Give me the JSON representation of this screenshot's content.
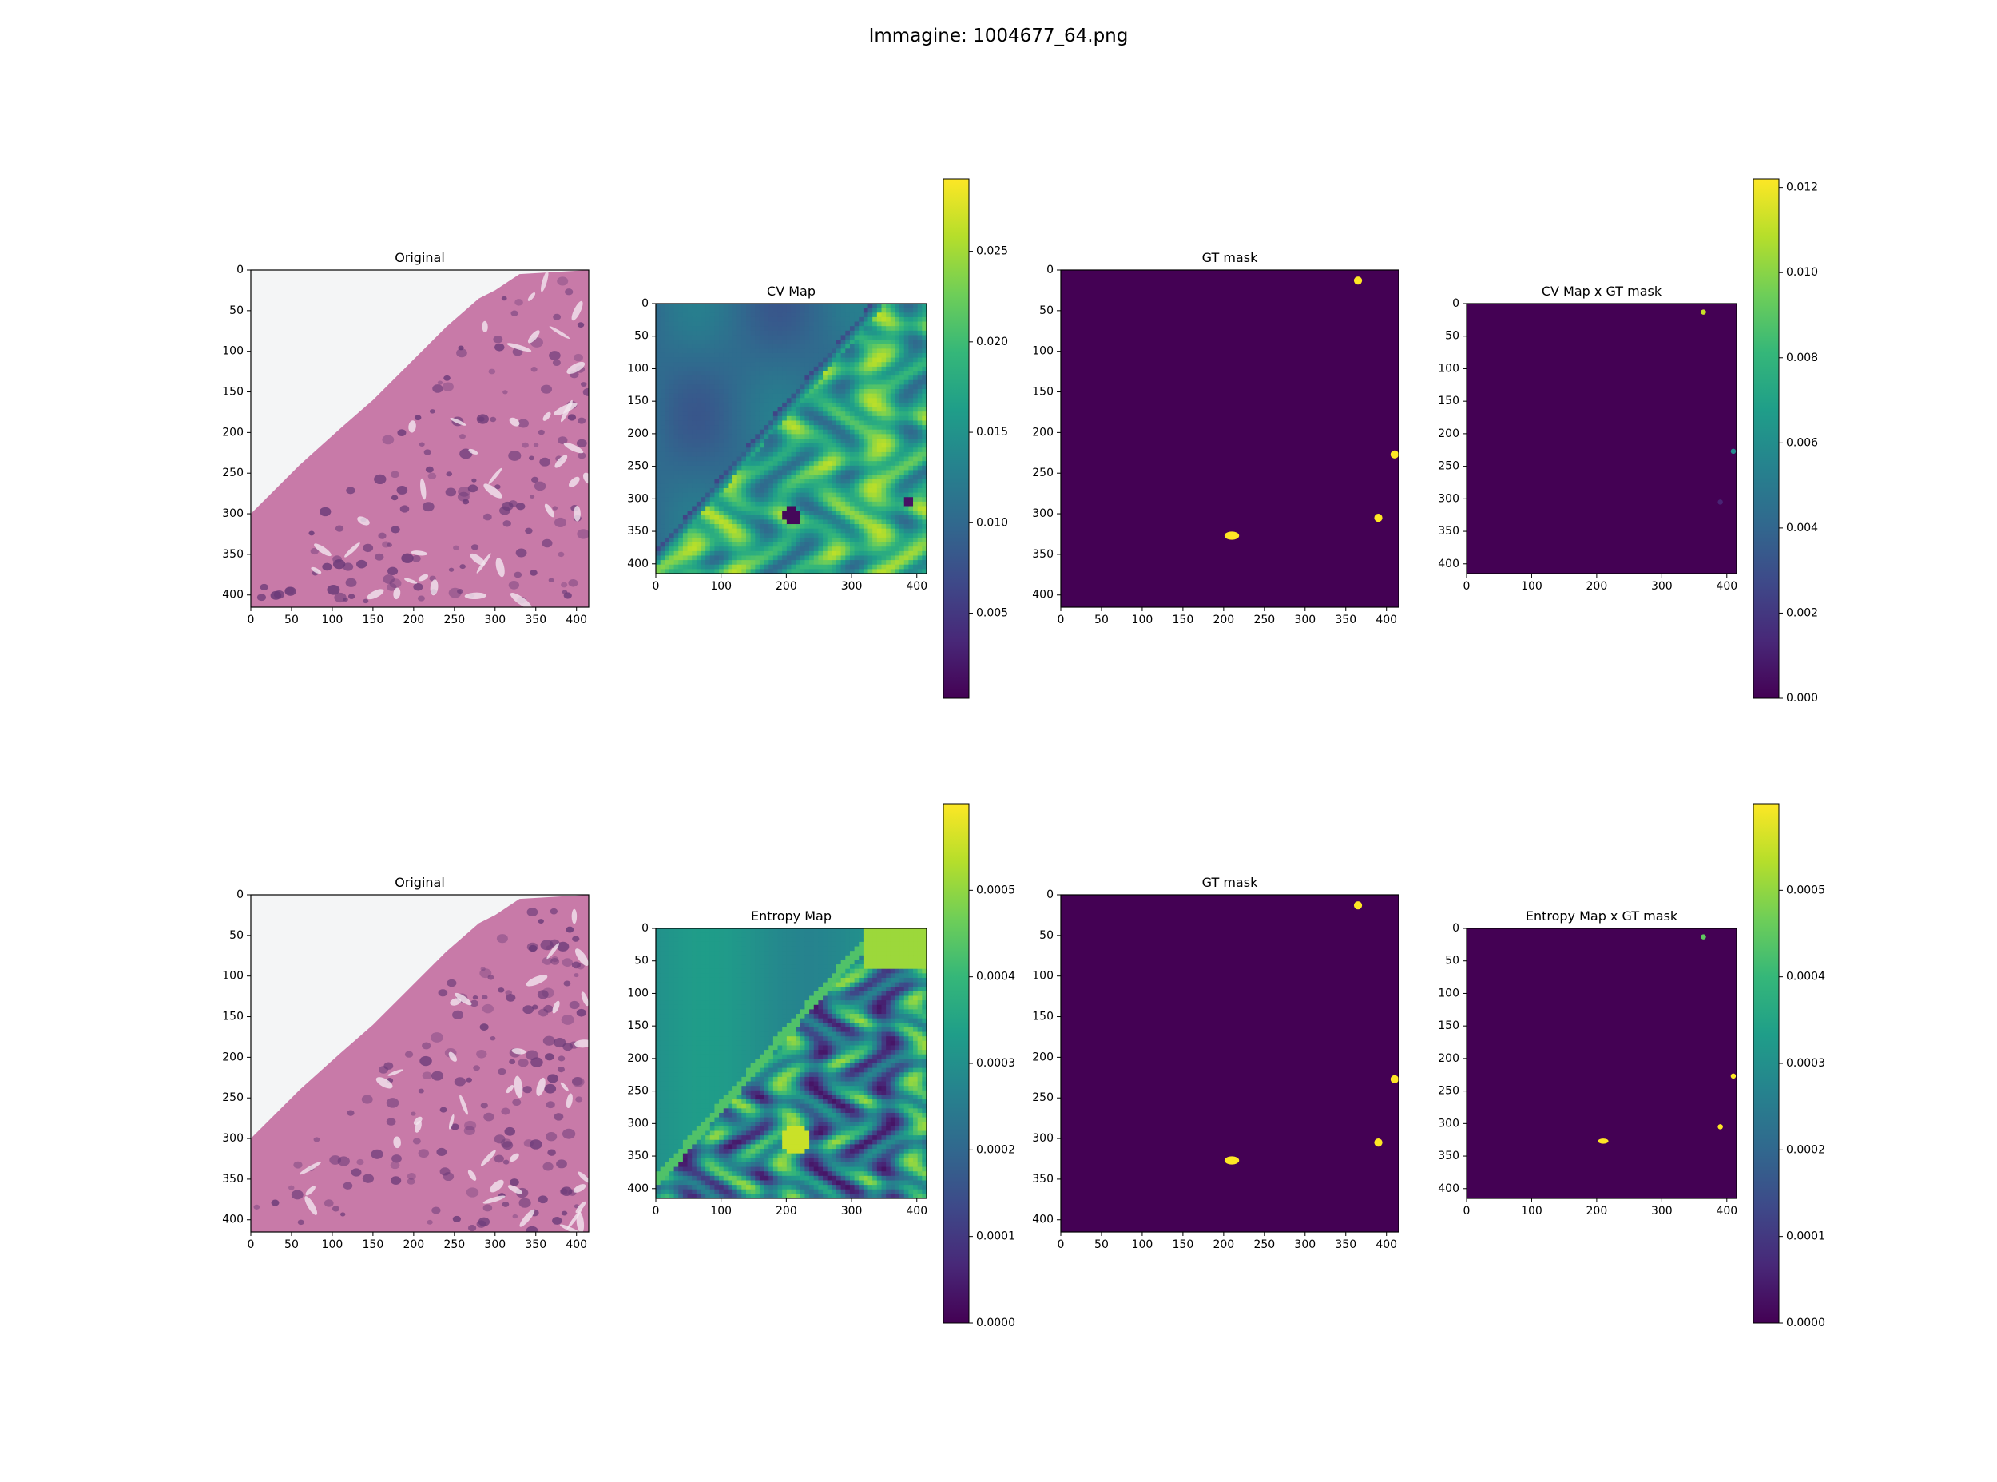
{
  "figure": {
    "title": "Immagine: 1004677_64.png"
  },
  "colors": {
    "viridis": [
      "#440154",
      "#482878",
      "#3e4989",
      "#31688e",
      "#26828e",
      "#1f9e89",
      "#35b779",
      "#6ece58",
      "#b5de2b",
      "#fde725"
    ],
    "tissue_pink": "#c87aa8",
    "nucleus": "#6a3a78",
    "background_white": "#f4f5f6"
  },
  "chart_data": [
    {
      "type": "heatmap",
      "title": "Original",
      "content": "H&E histology image",
      "xlim": [
        0,
        415
      ],
      "ylim": [
        415,
        0
      ],
      "xticks": [
        0,
        50,
        100,
        150,
        200,
        250,
        300,
        350,
        400
      ],
      "yticks": [
        0,
        50,
        100,
        150,
        200,
        250,
        300,
        350,
        400
      ]
    },
    {
      "type": "heatmap",
      "title": "CV Map",
      "xlim": [
        0,
        415
      ],
      "ylim": [
        415,
        0
      ],
      "xticks": [
        0,
        100,
        200,
        300,
        400
      ],
      "yticks": [
        0,
        50,
        100,
        150,
        200,
        250,
        300,
        350,
        400
      ],
      "colorbar": {
        "range": [
          0.0003,
          0.029
        ],
        "ticks": [
          "0.005",
          "0.010",
          "0.015",
          "0.020",
          "0.025"
        ]
      }
    },
    {
      "type": "heatmap",
      "title": "GT mask",
      "xlim": [
        0,
        415
      ],
      "ylim": [
        415,
        0
      ],
      "xticks": [
        0,
        50,
        100,
        150,
        200,
        250,
        300,
        350,
        400
      ],
      "yticks": [
        0,
        50,
        100,
        150,
        200,
        250,
        300,
        350,
        400
      ],
      "blobs": [
        {
          "x": 365,
          "y": 13
        },
        {
          "x": 410,
          "y": 227
        },
        {
          "x": 210,
          "y": 327
        },
        {
          "x": 390,
          "y": 305
        }
      ]
    },
    {
      "type": "heatmap",
      "title": "CV Map x GT mask",
      "xlim": [
        0,
        415
      ],
      "ylim": [
        415,
        0
      ],
      "xticks": [
        0,
        100,
        200,
        300,
        400
      ],
      "yticks": [
        0,
        50,
        100,
        150,
        200,
        250,
        300,
        350,
        400
      ],
      "colorbar": {
        "range": [
          0,
          0.0122
        ],
        "ticks": [
          "0.000",
          "0.002",
          "0.004",
          "0.006",
          "0.008",
          "0.010",
          "0.012"
        ]
      },
      "blobs": [
        {
          "x": 364,
          "y": 13,
          "value": 0.0112
        },
        {
          "x": 410,
          "y": 227,
          "value": 0.0058
        },
        {
          "x": 390,
          "y": 305,
          "value": 0.0012
        }
      ]
    },
    {
      "type": "heatmap",
      "title": "Original",
      "content": "H&E histology image",
      "xlim": [
        0,
        415
      ],
      "ylim": [
        415,
        0
      ],
      "xticks": [
        0,
        50,
        100,
        150,
        200,
        250,
        300,
        350,
        400
      ],
      "yticks": [
        0,
        50,
        100,
        150,
        200,
        250,
        300,
        350,
        400
      ]
    },
    {
      "type": "heatmap",
      "title": "Entropy Map",
      "xlim": [
        0,
        415
      ],
      "ylim": [
        415,
        0
      ],
      "xticks": [
        0,
        100,
        200,
        300,
        400
      ],
      "yticks": [
        0,
        50,
        100,
        150,
        200,
        250,
        300,
        350,
        400
      ],
      "colorbar": {
        "range": [
          0,
          0.0006
        ],
        "ticks": [
          "0.0000",
          "0.0001",
          "0.0002",
          "0.0003",
          "0.0004",
          "0.0005"
        ]
      }
    },
    {
      "type": "heatmap",
      "title": "GT mask",
      "xlim": [
        0,
        415
      ],
      "ylim": [
        415,
        0
      ],
      "xticks": [
        0,
        50,
        100,
        150,
        200,
        250,
        300,
        350,
        400
      ],
      "yticks": [
        0,
        50,
        100,
        150,
        200,
        250,
        300,
        350,
        400
      ],
      "blobs": [
        {
          "x": 365,
          "y": 13
        },
        {
          "x": 410,
          "y": 227
        },
        {
          "x": 210,
          "y": 327
        },
        {
          "x": 390,
          "y": 305
        }
      ]
    },
    {
      "type": "heatmap",
      "title": "Entropy Map x GT mask",
      "xlim": [
        0,
        415
      ],
      "ylim": [
        415,
        0
      ],
      "xticks": [
        0,
        100,
        200,
        300,
        400
      ],
      "yticks": [
        0,
        50,
        100,
        150,
        200,
        250,
        300,
        350,
        400
      ],
      "colorbar": {
        "range": [
          0,
          0.0006
        ],
        "ticks": [
          "0.0000",
          "0.0001",
          "0.0002",
          "0.0003",
          "0.0004",
          "0.0005"
        ]
      },
      "blobs": [
        {
          "x": 364,
          "y": 13,
          "value": 0.00045
        },
        {
          "x": 410,
          "y": 227,
          "value": 0.0006
        },
        {
          "x": 210,
          "y": 327,
          "value": 0.0006
        },
        {
          "x": 390,
          "y": 305,
          "value": 0.0006
        }
      ]
    }
  ]
}
